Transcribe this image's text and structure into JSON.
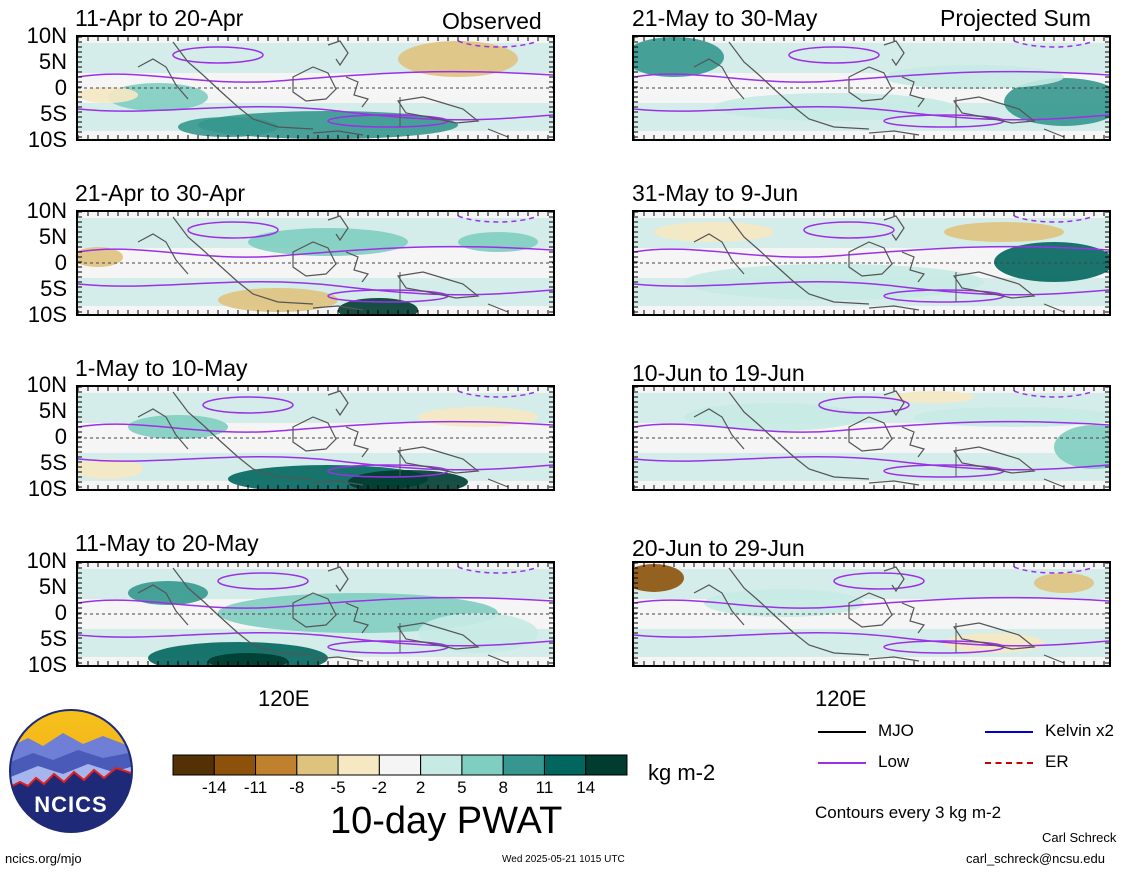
{
  "panels": [
    {
      "id": "p1",
      "title": "11-Apr to 20-Apr",
      "tag": "Observed"
    },
    {
      "id": "p2",
      "title": "21-Apr to 30-Apr",
      "tag": ""
    },
    {
      "id": "p3",
      "title": "1-May to 10-May",
      "tag": ""
    },
    {
      "id": "p4",
      "title": "11-May to 20-May",
      "tag": ""
    },
    {
      "id": "p5",
      "title": "21-May to 30-May",
      "tag": "Projected Sum"
    },
    {
      "id": "p6",
      "title": "31-May to 9-Jun",
      "tag": ""
    },
    {
      "id": "p7",
      "title": "10-Jun to 19-Jun",
      "tag": ""
    },
    {
      "id": "p8",
      "title": "20-Jun to 29-Jun",
      "tag": ""
    }
  ],
  "lat_labels": [
    "10N",
    "5N",
    "0",
    "5S",
    "10S"
  ],
  "lon_label": "120E",
  "colorbar": {
    "colors": [
      "#543005",
      "#8c510a",
      "#bf812d",
      "#dfc27d",
      "#f6e8c3",
      "#f5f5f5",
      "#c7eae5",
      "#80cdc1",
      "#35978f",
      "#01665e",
      "#003c30"
    ],
    "ticks": [
      "-14",
      "-11",
      "-8",
      "-5",
      "-2",
      "2",
      "5",
      "8",
      "11",
      "14"
    ],
    "units": "kg m-2",
    "title": "10-day PWAT"
  },
  "legend": {
    "items": [
      {
        "label": "MJO",
        "color": "#000000",
        "style": "solid"
      },
      {
        "label": "Kelvin x2",
        "color": "#0000cc",
        "style": "solid"
      },
      {
        "label": "Low",
        "color": "#9b30e8",
        "style": "solid"
      },
      {
        "label": "ER",
        "color": "#cc0000",
        "style": "dashed"
      }
    ],
    "note": "Contours every 3 kg m-2"
  },
  "logo": {
    "text": "NCICS"
  },
  "footer": {
    "url": "ncics.org/mjo",
    "timestamp": "Wed 2025-05-21 1015 UTC",
    "author": "Carl Schreck",
    "email": "carl_schreck@ncsu.edu"
  }
}
